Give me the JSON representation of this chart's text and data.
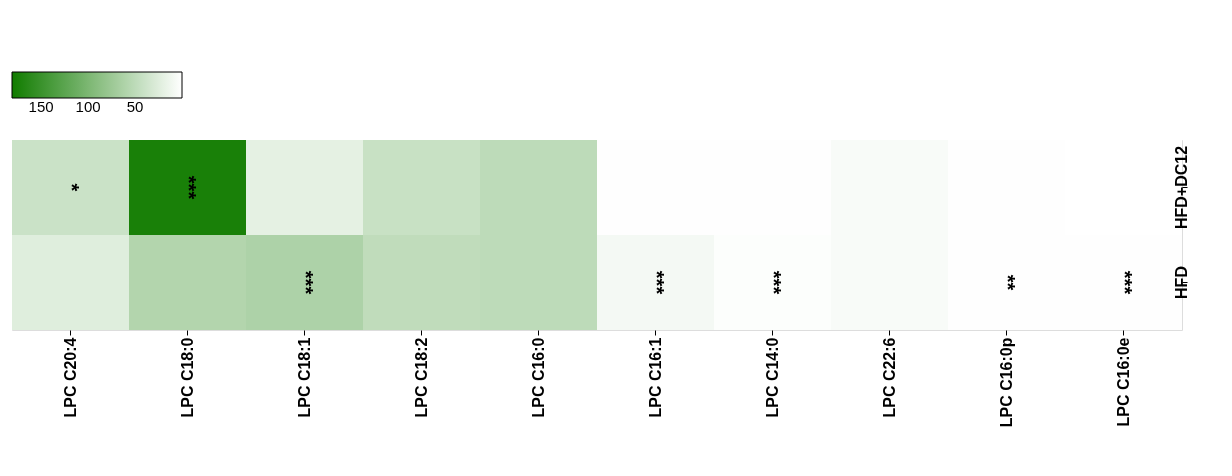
{
  "chart_data": {
    "type": "heatmap",
    "categories": [
      "LPC C20:4",
      "LPC C18:0",
      "LPC C18:1",
      "LPC C18:2",
      "LPC C16:0",
      "LPC C16:1",
      "LPC C14:0",
      "LPC C22:6",
      "LPC C16:0p",
      "LPC C16:0e"
    ],
    "y_categories": [
      "HFD+DC12",
      "HFD"
    ],
    "cells": [
      [
        40,
        175,
        20,
        42,
        50,
        1,
        1,
        5,
        1,
        0
      ],
      [
        24,
        58,
        62,
        48,
        50,
        8,
        2,
        5,
        1,
        1
      ]
    ],
    "cell_labels": [
      [
        "*",
        "***",
        null,
        null,
        null,
        null,
        null,
        null,
        null,
        null
      ],
      [
        null,
        null,
        "***",
        null,
        null,
        "***",
        "***",
        null,
        "**",
        "***"
      ]
    ],
    "clim": [
      0,
      181
    ],
    "cticks": [
      50,
      100,
      150
    ],
    "colors": [
      "#ffffff",
      "#117c00"
    ]
  }
}
